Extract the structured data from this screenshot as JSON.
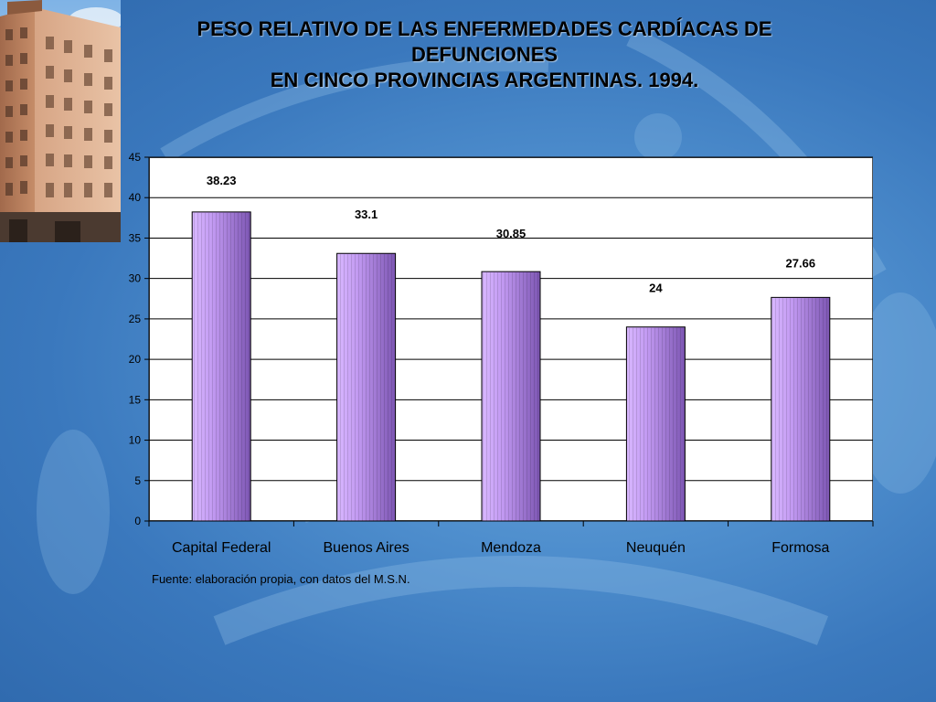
{
  "slide": {
    "title_lines": [
      "PESO RELATIVO DE LAS ENFERMEDADES CARDÍACAS DE",
      "DEFUNCIONES",
      "EN CINCO PROVINCIAS ARGENTINAS. 1994."
    ],
    "source_note": "Fuente: elaboración propia, con datos del M.S.N."
  },
  "chart_data": {
    "type": "bar",
    "title": "PESO RELATIVO DE LAS ENFERMEDADES CARDÍACAS DE DEFUNCIONES EN CINCO PROVINCIAS ARGENTINAS. 1994.",
    "categories": [
      "Capital Federal",
      "Buenos Aires",
      "Mendoza",
      "Neuquén",
      "Formosa"
    ],
    "values": [
      38.23,
      33.1,
      30.85,
      24,
      27.66
    ],
    "data_labels": [
      "38.23",
      "33.1",
      "30.85",
      "24",
      "27.66"
    ],
    "xlabel": "",
    "ylabel": "",
    "ylim": [
      0,
      45
    ],
    "yticks": [
      0,
      5,
      10,
      15,
      20,
      25,
      30,
      35,
      40,
      45
    ],
    "grid": true,
    "legend": false,
    "bar_color": "#b48be8",
    "bar_shade": "#7d56b3"
  }
}
